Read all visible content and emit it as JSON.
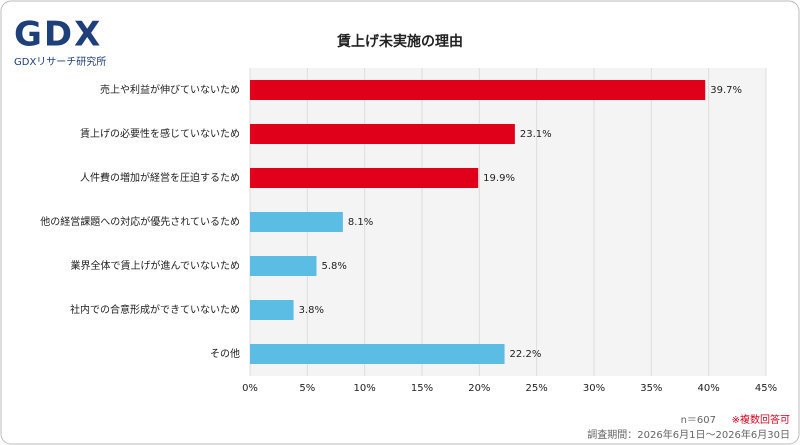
{
  "logo": {
    "mark": "GDX",
    "name": "GDXリサーチ研究所"
  },
  "chart_data": {
    "type": "bar",
    "orientation": "horizontal",
    "title": "賃上げ未実施の理由",
    "categories": [
      "売上や利益が伸びていないため",
      "賃上げの必要性を感じていないため",
      "人件費の増加が経営を圧迫するため",
      "他の経営課題への対応が優先されているため",
      "業界全体で賃上げが進んでいないため",
      "社内での合意形成ができていないため",
      "その他"
    ],
    "values": [
      39.7,
      23.1,
      19.9,
      8.1,
      5.8,
      3.8,
      22.2
    ],
    "value_labels": [
      "39.7%",
      "23.1%",
      "19.9%",
      "8.1%",
      "5.8%",
      "3.8%",
      "22.2%"
    ],
    "colors": [
      "#e0001a",
      "#e0001a",
      "#e0001a",
      "#5bbde4",
      "#5bbde4",
      "#5bbde4",
      "#5bbde4"
    ],
    "xlim": [
      0,
      45
    ],
    "xticks": [
      {
        "value": 0,
        "label": "0%"
      },
      {
        "value": 5,
        "label": "5%"
      },
      {
        "value": 10,
        "label": "10%"
      },
      {
        "value": 15,
        "label": "15%"
      },
      {
        "value": 20,
        "label": "20%"
      },
      {
        "value": 25,
        "label": "25%"
      },
      {
        "value": 30,
        "label": "30%"
      },
      {
        "value": 35,
        "label": "35%"
      },
      {
        "value": 40,
        "label": "40%"
      },
      {
        "value": 45,
        "label": "45%"
      }
    ],
    "grid": true
  },
  "notes": {
    "sample": "n＝607",
    "multiple": "※複数回答可",
    "period": "調査期間：2026年6月1日～2026年6月30日"
  }
}
